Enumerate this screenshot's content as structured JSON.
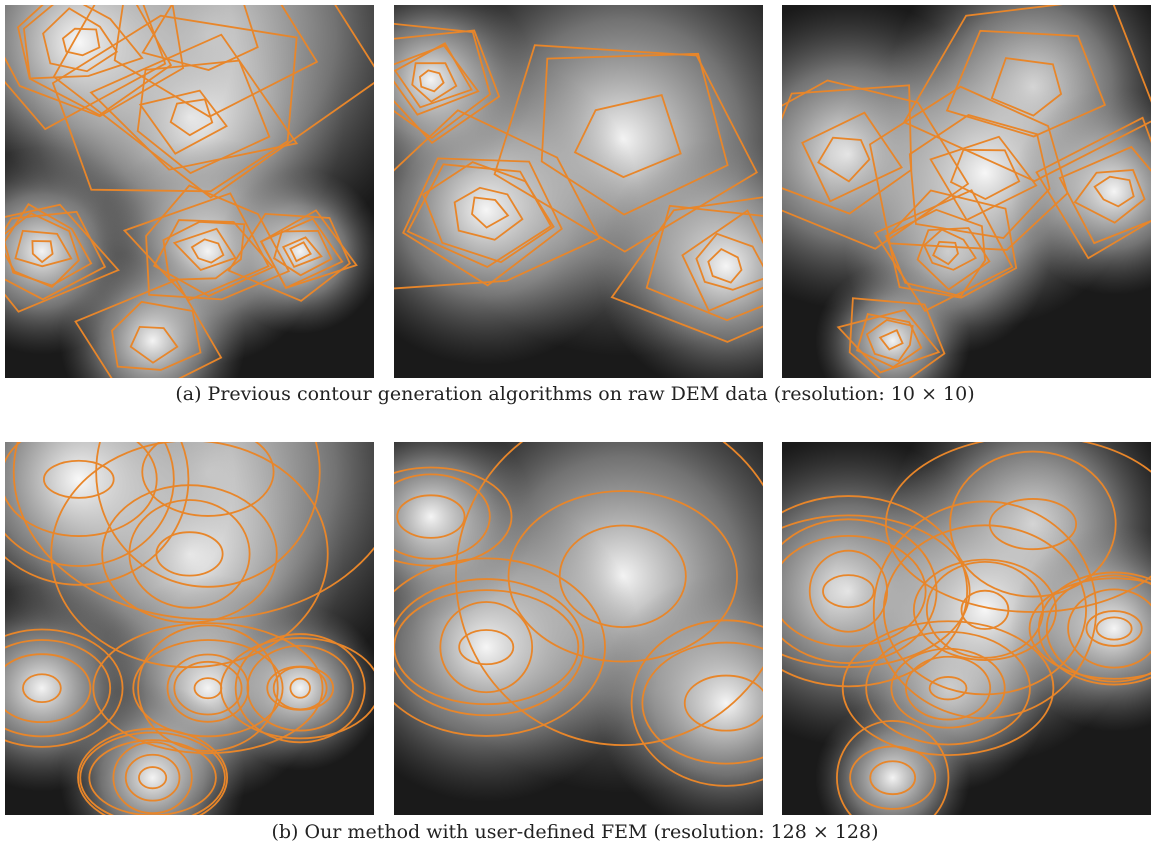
{
  "figure": {
    "panels": [
      {
        "caption": "(a) Previous contour generation algorithms on raw DEM data (resolution:  10 × 10)"
      },
      {
        "caption": "(b) Our method with user-defined FEM (resolution:  128 × 128)"
      }
    ]
  }
}
